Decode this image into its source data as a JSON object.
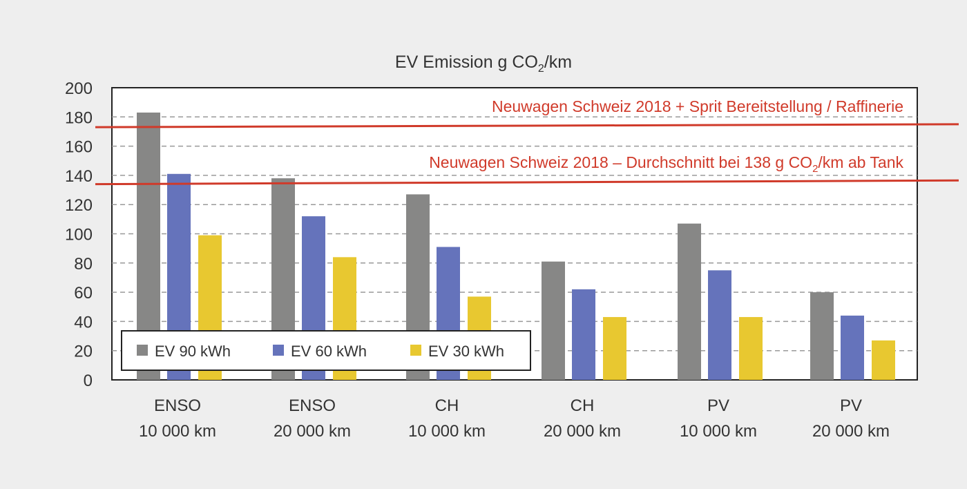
{
  "chart_data": {
    "type": "bar",
    "title": "EV Emission g CO2/km",
    "title_parts": {
      "main": "EV Emission g CO",
      "sub": "2",
      "tail": "/km"
    },
    "categories": [
      [
        "ENSO",
        "10 000 km"
      ],
      [
        "ENSO",
        "20 000 km"
      ],
      [
        "CH",
        "10 000 km"
      ],
      [
        "CH",
        "20 000 km"
      ],
      [
        "PV",
        "10 000 km"
      ],
      [
        "PV",
        "20 000 km"
      ]
    ],
    "series": [
      {
        "name": "EV 90 kWh",
        "color": "#878786",
        "values": [
          183,
          138,
          127,
          81,
          107,
          60
        ]
      },
      {
        "name": "EV 60 kWh",
        "color": "#6573bb",
        "values": [
          141,
          112,
          91,
          62,
          75,
          44
        ]
      },
      {
        "name": "EV 30 kWh",
        "color": "#e8c830",
        "values": [
          99,
          84,
          57,
          43,
          43,
          27
        ]
      }
    ],
    "ylim": [
      0,
      200
    ],
    "yticks": [
      0,
      20,
      40,
      60,
      80,
      100,
      120,
      140,
      160,
      180,
      200
    ],
    "grid": "horizontal dashed",
    "legend": "bottom-left",
    "reference_lines": [
      {
        "label": "Neuwagen Schweiz 2018 + Sprit Bereitstellung / Raffinerie",
        "value_start": 173,
        "value_end": 175,
        "color": "#d03a2a"
      },
      {
        "label": "Neuwagen Schweiz 2018 – Durchschnitt bei 138 g CO2/km ab Tank",
        "label_parts": {
          "main": "Neuwagen Schweiz 2018 – Durchschnitt bei 138 g CO",
          "sub": "2",
          "tail": "/km ab Tank"
        },
        "value_start": 134,
        "value_end": 136.5,
        "color": "#d03a2a"
      }
    ]
  }
}
